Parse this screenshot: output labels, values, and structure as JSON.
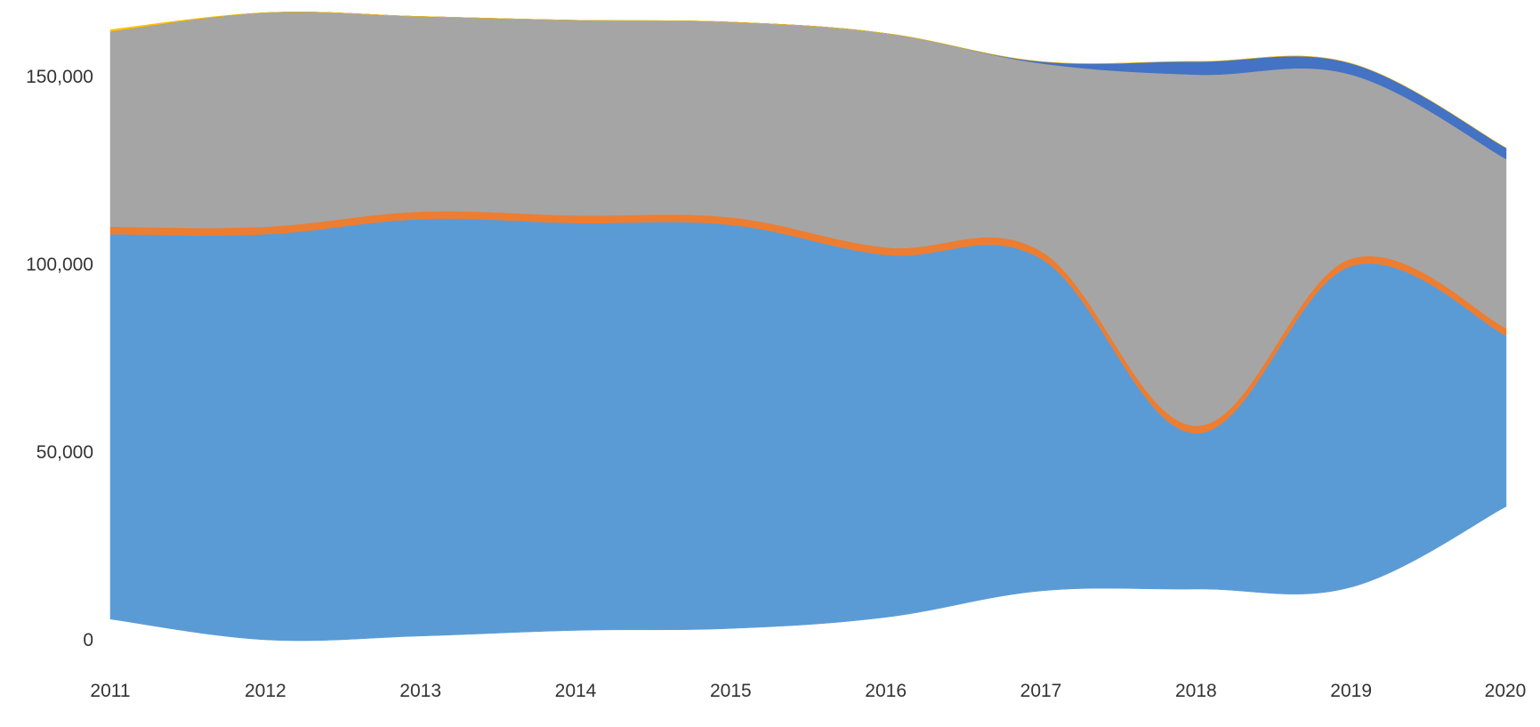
{
  "chart_data": {
    "type": "area",
    "title": "",
    "xlabel": "",
    "ylabel": "",
    "x": [
      "2011",
      "2012",
      "2013",
      "2014",
      "2015",
      "2016",
      "2017",
      "2018",
      "2019",
      "2020"
    ],
    "ylim": [
      0,
      165000
    ],
    "y_ticks": [
      0,
      50000,
      100000,
      150000
    ],
    "y_tick_labels": [
      "0",
      "50,000",
      "100,000",
      "150,000"
    ],
    "grid": false,
    "legend": "none",
    "curve": "smooth",
    "series": [
      {
        "color": "#5b9bd5",
        "lower": [
          5500,
          0,
          1000,
          2500,
          3000,
          6000,
          13000,
          13500,
          14000,
          35500
        ],
        "upper": [
          108000,
          108000,
          112000,
          111000,
          110500,
          102500,
          101500,
          55000,
          99500,
          81000
        ]
      },
      {
        "color": "#ed7d31",
        "lower": [
          108000,
          108000,
          112000,
          111000,
          110500,
          102500,
          101500,
          55000,
          99500,
          81000
        ],
        "upper": [
          110000,
          110000,
          114000,
          113000,
          112500,
          104500,
          103500,
          57000,
          101500,
          83000
        ]
      },
      {
        "color": "#a5a5a5",
        "lower": [
          110000,
          110000,
          114000,
          113000,
          112500,
          104500,
          103500,
          57000,
          101500,
          83000
        ],
        "upper": [
          162000,
          167000,
          166000,
          165000,
          164500,
          161500,
          153500,
          150500,
          150500,
          128000
        ]
      },
      {
        "color": "#4472c4",
        "lower": [
          162000,
          167000,
          166000,
          165000,
          164500,
          161500,
          153500,
          150500,
          150500,
          128000
        ],
        "upper": [
          162000,
          167000,
          166000,
          165000,
          164500,
          161500,
          154000,
          154000,
          153500,
          131000
        ]
      },
      {
        "color": "#ffc000",
        "lower": [
          162000,
          167000,
          166000,
          165000,
          164500,
          161500,
          154000,
          154000,
          153500,
          131000
        ],
        "upper": [
          162500,
          167000,
          166000,
          165000,
          164500,
          161500,
          154000,
          154000,
          153500,
          131000
        ]
      }
    ]
  }
}
